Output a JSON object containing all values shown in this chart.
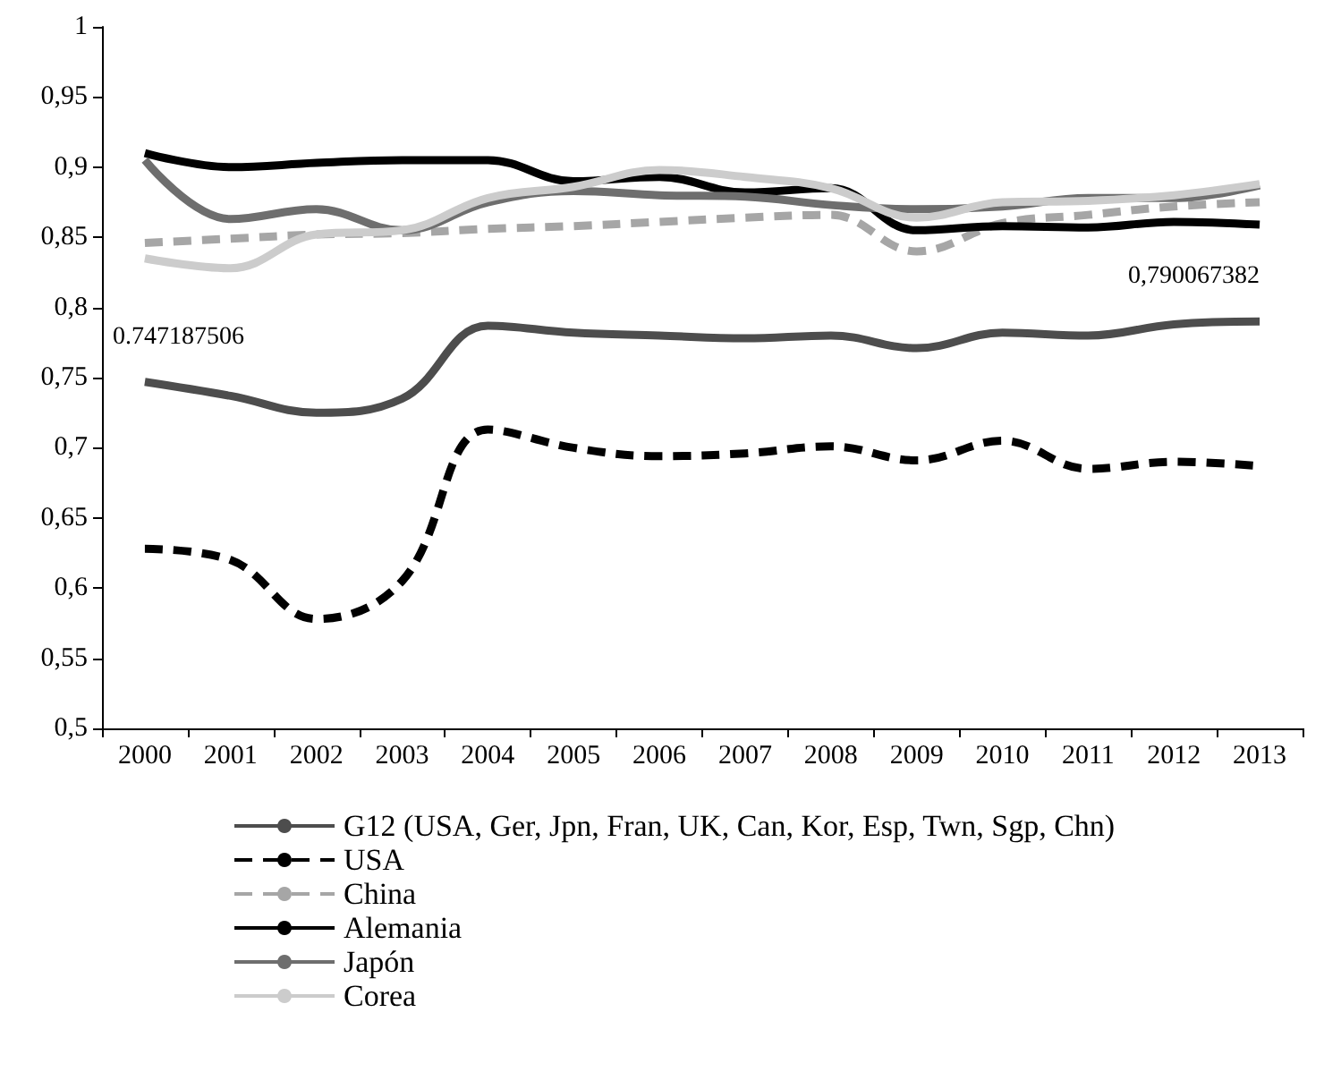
{
  "chart_data": {
    "type": "line",
    "categories": [
      "2000",
      "2001",
      "2002",
      "2003",
      "2004",
      "2005",
      "2006",
      "2007",
      "2008",
      "2009",
      "2010",
      "2011",
      "2012",
      "2013"
    ],
    "ylim": [
      0.5,
      1
    ],
    "yticks": [
      {
        "value": 0.5,
        "label": "0,5"
      },
      {
        "value": 0.55,
        "label": "0,55"
      },
      {
        "value": 0.6,
        "label": "0,6"
      },
      {
        "value": 0.65,
        "label": "0,65"
      },
      {
        "value": 0.7,
        "label": "0,7"
      },
      {
        "value": 0.75,
        "label": "0,75"
      },
      {
        "value": 0.8,
        "label": "0,8"
      },
      {
        "value": 0.85,
        "label": "0,85"
      },
      {
        "value": 0.9,
        "label": "0,9"
      },
      {
        "value": 0.95,
        "label": "0,95"
      },
      {
        "value": 1,
        "label": "1"
      }
    ],
    "grid": false,
    "legend": "bottom",
    "marker": "none",
    "series": [
      {
        "name": "G12 (USA, Ger, Jpn, Fran, UK, Can, Kor, Esp, Twn, Sgp, Chn)",
        "color": "#4d4d4d",
        "line_style": "solid",
        "values": [
          0.747,
          0.737,
          0.725,
          0.735,
          0.787,
          0.782,
          0.78,
          0.778,
          0.78,
          0.771,
          0.782,
          0.78,
          0.788,
          0.79
        ]
      },
      {
        "name": "USA",
        "color": "#000000",
        "line_style": "dashed",
        "values": [
          0.628,
          0.62,
          0.578,
          0.605,
          0.713,
          0.7,
          0.694,
          0.696,
          0.701,
          0.691,
          0.705,
          0.685,
          0.69,
          0.687
        ]
      },
      {
        "name": "China",
        "color": "#a6a6a6",
        "line_style": "dashed",
        "values": [
          0.846,
          0.849,
          0.852,
          0.853,
          0.856,
          0.858,
          0.861,
          0.864,
          0.866,
          0.84,
          0.86,
          0.866,
          0.872,
          0.875
        ]
      },
      {
        "name": "Alemania",
        "color": "#000000",
        "line_style": "solid",
        "values": [
          0.91,
          0.9,
          0.903,
          0.905,
          0.905,
          0.89,
          0.893,
          0.882,
          0.885,
          0.855,
          0.858,
          0.857,
          0.861,
          0.859
        ]
      },
      {
        "name": "Japón",
        "color": "#6e6e6e",
        "line_style": "solid",
        "values": [
          0.905,
          0.863,
          0.87,
          0.855,
          0.875,
          0.883,
          0.88,
          0.879,
          0.873,
          0.87,
          0.872,
          0.878,
          0.878,
          0.887
        ]
      },
      {
        "name": "Corea",
        "color": "#cccccc",
        "line_style": "solid",
        "values": [
          0.835,
          0.828,
          0.852,
          0.855,
          0.878,
          0.886,
          0.898,
          0.893,
          0.885,
          0.864,
          0.875,
          0.876,
          0.88,
          0.888
        ]
      }
    ],
    "annotations": [
      {
        "text": "0.747187506",
        "x": "2000",
        "y": 0.747
      },
      {
        "text": "0,790067382",
        "x": "2013",
        "y": 0.79
      }
    ]
  }
}
